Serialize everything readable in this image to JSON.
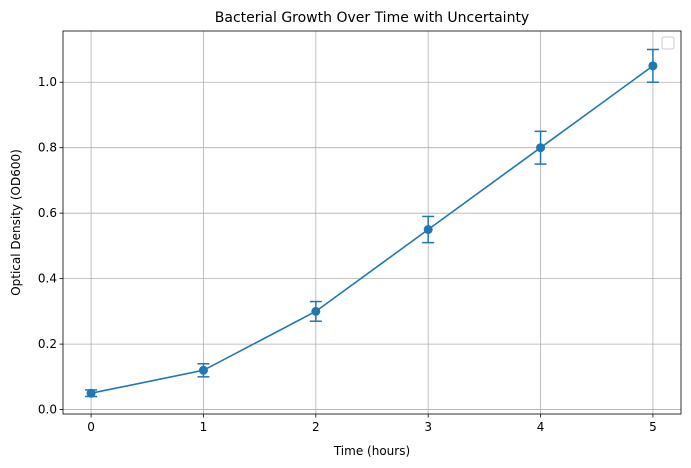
{
  "chart_data": {
    "type": "line",
    "title": "Bacterial Growth Over Time with Uncertainty",
    "xlabel": "Time (hours)",
    "ylabel": "Optical Density (OD600)",
    "xlim": [
      -0.25,
      5.25
    ],
    "ylim": [
      -0.0135,
      1.1565
    ],
    "xticks": [
      0,
      1,
      2,
      3,
      4,
      5
    ],
    "yticks": [
      0.0,
      0.2,
      0.4,
      0.6,
      0.8,
      1.0
    ],
    "xtick_labels": [
      "0",
      "1",
      "2",
      "3",
      "4",
      "5"
    ],
    "ytick_labels": [
      "0.0",
      "0.2",
      "0.4",
      "0.6",
      "0.8",
      "1.0"
    ],
    "grid": true,
    "legend": "top-right (empty)",
    "color": "#1f77b4",
    "series": [
      {
        "x": [
          0,
          1,
          2,
          3,
          4,
          5
        ],
        "values": [
          0.05,
          0.12,
          0.3,
          0.55,
          0.8,
          1.05
        ],
        "errors": [
          0.01,
          0.02,
          0.03,
          0.04,
          0.05,
          0.05
        ]
      }
    ]
  }
}
